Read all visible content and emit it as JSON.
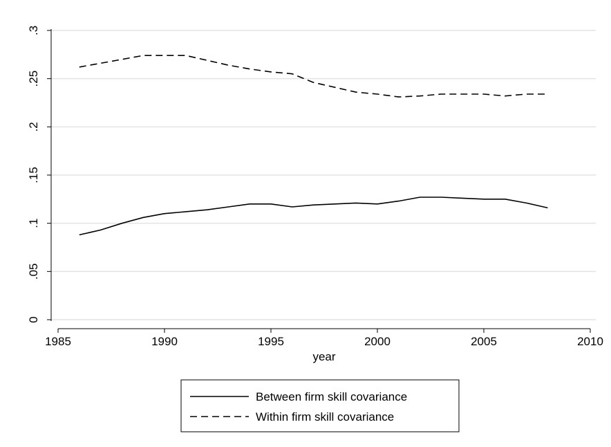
{
  "chart_data": {
    "type": "line",
    "xlabel": "year",
    "ylabel": "",
    "xlim": [
      1985,
      2010
    ],
    "ylim": [
      0,
      0.3
    ],
    "xticks": [
      1985,
      1990,
      1995,
      2000,
      2005,
      2010
    ],
    "xtick_labels": [
      "1985",
      "1990",
      "1995",
      "2000",
      "2005",
      "2010"
    ],
    "yticks": [
      0,
      0.05,
      0.1,
      0.15,
      0.2,
      0.25,
      0.3
    ],
    "ytick_labels": [
      "0",
      ".05",
      ".1",
      ".15",
      ".2",
      ".25",
      ".3"
    ],
    "grid": "horizontal",
    "legend_position": "bottom",
    "x": [
      1986,
      1987,
      1988,
      1989,
      1990,
      1991,
      1992,
      1993,
      1994,
      1995,
      1996,
      1997,
      1998,
      1999,
      2000,
      2001,
      2002,
      2003,
      2004,
      2005,
      2006,
      2007,
      2008
    ],
    "series": [
      {
        "name": "Between firm skill covariance",
        "line_style": "solid",
        "color": "#000000",
        "values": [
          0.088,
          0.093,
          0.1,
          0.106,
          0.11,
          0.112,
          0.114,
          0.117,
          0.12,
          0.12,
          0.117,
          0.119,
          0.12,
          0.121,
          0.12,
          0.123,
          0.127,
          0.127,
          0.126,
          0.125,
          0.125,
          0.121,
          0.116
        ]
      },
      {
        "name": "Within firm skill covariance",
        "line_style": "dashed",
        "color": "#000000",
        "values": [
          0.262,
          0.266,
          0.27,
          0.274,
          0.274,
          0.274,
          0.269,
          0.264,
          0.26,
          0.257,
          0.255,
          0.246,
          0.241,
          0.236,
          0.234,
          0.231,
          0.232,
          0.234,
          0.234,
          0.234,
          0.232,
          0.234,
          0.234
        ]
      }
    ]
  }
}
